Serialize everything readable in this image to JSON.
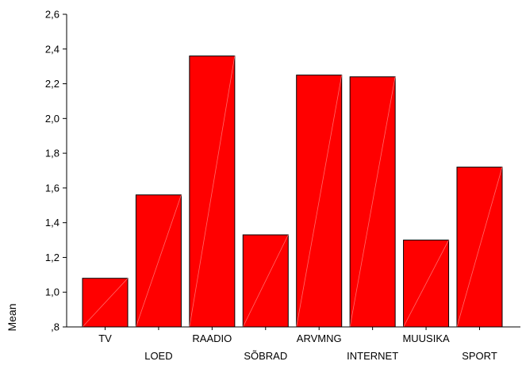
{
  "chart_data": {
    "type": "bar",
    "title": "",
    "xlabel": "",
    "ylabel": "Mean",
    "ylim": [
      0.8,
      2.6
    ],
    "yticks": [
      0.8,
      1.0,
      1.2,
      1.4,
      1.6,
      1.8,
      2.0,
      2.2,
      2.4,
      2.6
    ],
    "ytick_labels": [
      ",8",
      "1,0",
      "1,2",
      "1,4",
      "1,6",
      "1,8",
      "2,0",
      "2,2",
      "2,4",
      "2,6"
    ],
    "categories": [
      "TV",
      "LOED",
      "RAADIO",
      "SÕBRAD",
      "ARVMNG",
      "INTERNET",
      "MUUSIKA",
      "SPORT"
    ],
    "values": [
      1.08,
      1.56,
      2.36,
      1.33,
      2.25,
      2.24,
      1.3,
      1.72
    ],
    "label_stagger": "alternating",
    "grid": false,
    "bar_color": "#ff0000",
    "bar_edge_color": "#000000"
  }
}
